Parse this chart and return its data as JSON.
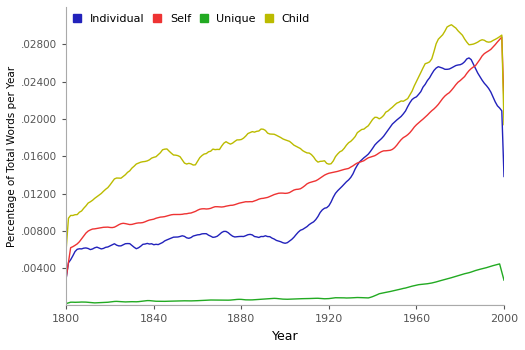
{
  "title": "",
  "xlabel": "Year",
  "ylabel": "Percentage of Total Words per Year",
  "xlim": [
    1800,
    2000
  ],
  "ylim": [
    0,
    0.032
  ],
  "yticks": [
    0.004,
    0.008,
    0.012,
    0.016,
    0.02,
    0.024,
    0.028
  ],
  "ytick_labels": [
    ".00400",
    ".00800",
    ".01200",
    ".01600",
    ".02000",
    ".02400",
    ".02800"
  ],
  "xticks": [
    1800,
    1840,
    1880,
    1920,
    1960,
    2000
  ],
  "legend_labels": [
    "Individual",
    "Self",
    "Unique",
    "Child"
  ],
  "colors": {
    "Individual": "#2222bb",
    "Self": "#ee3333",
    "Unique": "#22aa22",
    "Child": "#bbbb00"
  },
  "line_width": 1.0,
  "background_color": "#ffffff",
  "axes_background": "#ffffff"
}
